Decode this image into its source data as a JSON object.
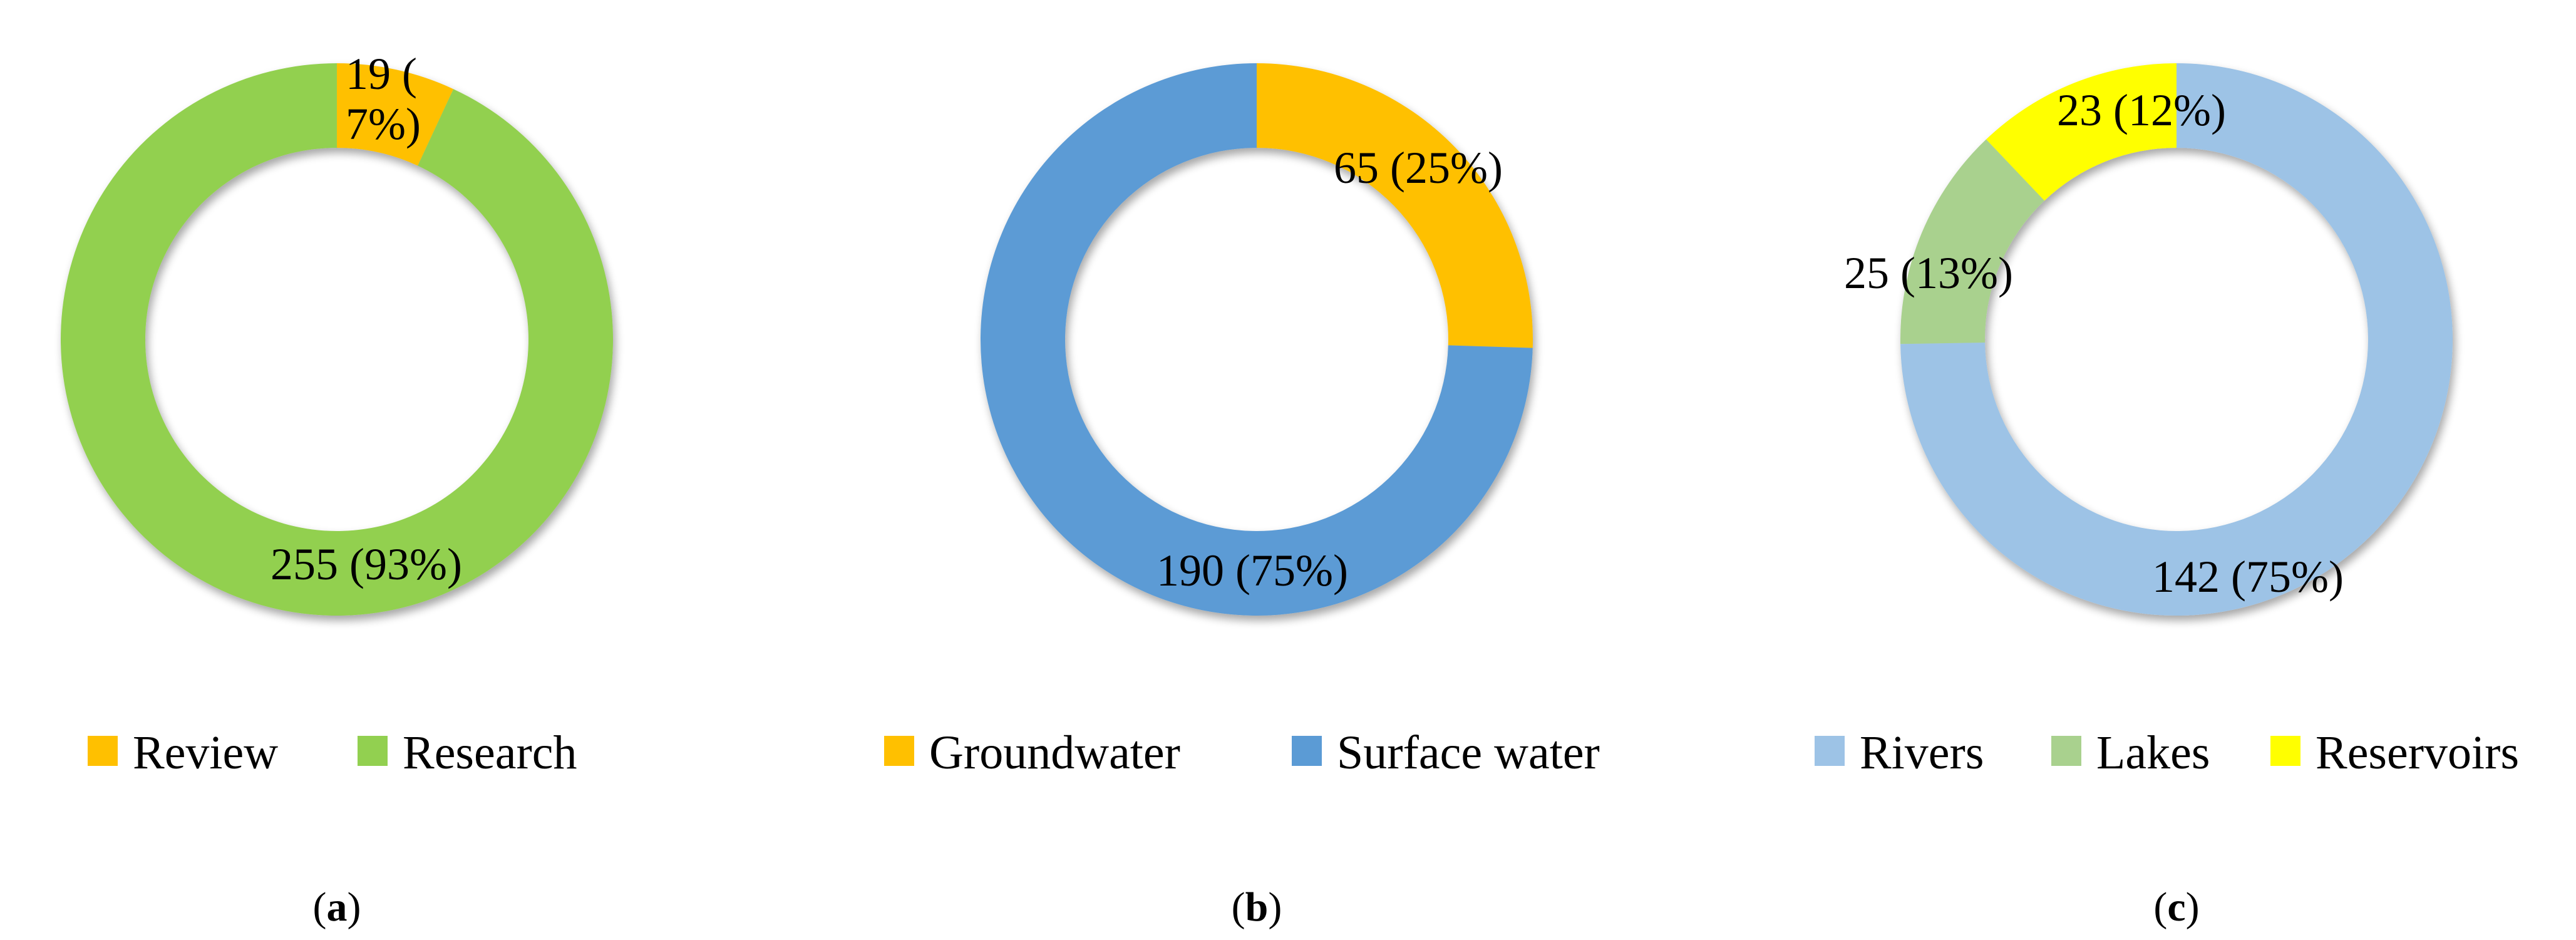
{
  "chart_data": [
    {
      "type": "pie",
      "variant": "donut",
      "panel": "a",
      "caption": {
        "open": "(",
        "letter": "a",
        "close": ")"
      },
      "legend_position": "bottom",
      "slices": [
        {
          "name": "Review",
          "value": 19,
          "percent": 7,
          "label": "19 (\n7%)",
          "color": "#FFC000"
        },
        {
          "name": "Research",
          "value": 255,
          "percent": 93,
          "label": "255 (93%)",
          "color": "#92D050"
        }
      ]
    },
    {
      "type": "pie",
      "variant": "donut",
      "panel": "b",
      "caption": {
        "open": "(",
        "letter": "b",
        "close": ")"
      },
      "legend_position": "bottom",
      "slices": [
        {
          "name": "Groundwater",
          "value": 65,
          "percent": 25,
          "label": "65 (25%)",
          "color": "#FFC000"
        },
        {
          "name": "Surface water",
          "value": 190,
          "percent": 75,
          "label": "190 (75%)",
          "color": "#5B9BD5"
        }
      ]
    },
    {
      "type": "pie",
      "variant": "donut",
      "panel": "c",
      "caption": {
        "open": "(",
        "letter": "c",
        "close": ")"
      },
      "legend_position": "bottom",
      "slices": [
        {
          "name": "Rivers",
          "value": 142,
          "percent": 75,
          "label": "142 (75%)",
          "color": "#9DC3E6"
        },
        {
          "name": "Lakes",
          "value": 25,
          "percent": 13,
          "label": "25 (13%)",
          "color": "#A9D18E"
        },
        {
          "name": "Reservoirs",
          "value": 23,
          "percent": 12,
          "label": "23 (12%)",
          "color": "#FFFF00"
        }
      ]
    }
  ]
}
